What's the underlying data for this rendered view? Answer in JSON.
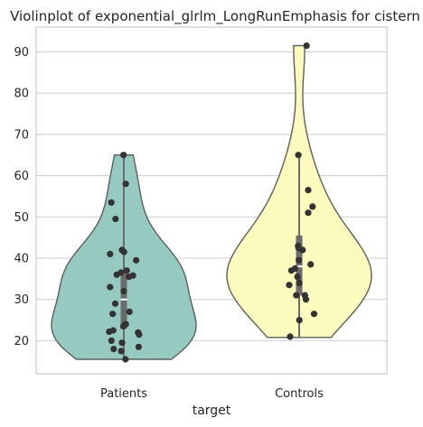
{
  "chart_data": {
    "type": "violin",
    "title": "Violinplot of exponential_glrlm_LongRunEmphasis for cistern",
    "xlabel": "target",
    "ylabel": "",
    "categories": [
      "Patients",
      "Controls"
    ],
    "ylim": [
      12,
      96
    ],
    "yticks": [
      20,
      30,
      40,
      50,
      60,
      70,
      80,
      90
    ],
    "grid": true,
    "colors": {
      "Patients": "#96c9c0",
      "Controls": "#fbfbbd",
      "outline": "#5f5f5f",
      "point": "#333333",
      "box": "#6b6b6b"
    },
    "series": [
      {
        "category": "Patients",
        "range": [
          15.5,
          65
        ],
        "quartiles": [
          23,
          30,
          37
        ],
        "whisker": [
          15.5,
          65
        ],
        "points": [
          65,
          58,
          53.5,
          49.5,
          42,
          41.5,
          41,
          39.5,
          37,
          36.5,
          36,
          35.8,
          35.5,
          33,
          32,
          29,
          27,
          26.5,
          24,
          23.5,
          22.5,
          22.2,
          22,
          21.5,
          20,
          19.5,
          18.5,
          18,
          17.5,
          15.5
        ]
      },
      {
        "category": "Controls",
        "range": [
          20.8,
          91.5
        ],
        "quartiles": [
          31,
          38,
          45.5
        ],
        "whisker": [
          20.8,
          65
        ],
        "points": [
          91.5,
          65,
          56.5,
          52.5,
          51,
          43,
          42.5,
          42,
          39.5,
          38.5,
          37.5,
          37,
          35.5,
          34,
          33.5,
          31,
          31,
          30,
          26.5,
          25,
          21
        ]
      }
    ]
  }
}
